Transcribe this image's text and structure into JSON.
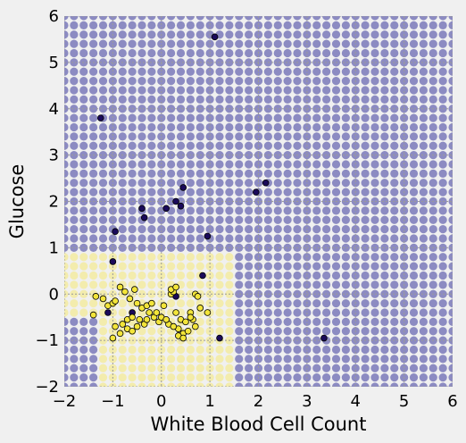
{
  "chart_data": {
    "type": "scatter",
    "title": "",
    "xlabel": "White Blood Cell Count",
    "ylabel": "Glucose",
    "xlim": [
      -2,
      6
    ],
    "ylim": [
      -2,
      6
    ],
    "xticks": [
      "−2",
      "−1",
      "0",
      "1",
      "2",
      "3",
      "4",
      "5",
      "6"
    ],
    "yticks": [
      "−2",
      "−1",
      "0",
      "1",
      "2",
      "3",
      "4",
      "5",
      "6"
    ],
    "grid": true,
    "background_grid": {
      "description": "decision-region mesh of translucent dots",
      "x_values": [
        -2.0,
        -1.8,
        -1.6,
        -1.4,
        -1.2,
        -1.0,
        -0.8,
        -0.6,
        -0.4,
        -0.2,
        0.0,
        0.2,
        0.4,
        0.6,
        0.8,
        1.0,
        1.2,
        1.4,
        1.6,
        1.8,
        2.0,
        2.2,
        2.4,
        2.6,
        2.8,
        3.0,
        3.2,
        3.4,
        3.6,
        3.8,
        4.0,
        4.2,
        4.4,
        4.6,
        4.8,
        5.0,
        5.2,
        5.4,
        5.6,
        5.8,
        6.0
      ],
      "y_values": [
        -2.0,
        -1.8,
        -1.6,
        -1.4,
        -1.2,
        -1.0,
        -0.8,
        -0.6,
        -0.4,
        -0.2,
        0.0,
        0.2,
        0.4,
        0.6,
        0.8,
        1.0,
        1.2,
        1.4,
        1.6,
        1.8,
        2.0,
        2.2,
        2.4,
        2.6,
        2.8,
        3.0,
        3.2,
        3.4,
        3.6,
        3.8,
        4.0,
        4.2,
        4.4,
        4.6,
        4.8,
        5.0,
        5.2,
        5.4,
        5.6,
        5.8,
        6.0
      ],
      "class1_region": [
        {
          "x": [
            -2.0,
            1.4
          ],
          "y": [
            -0.4,
            0.8
          ]
        },
        {
          "x": [
            -1.2,
            1.4
          ],
          "y": [
            -2.0,
            -0.4
          ]
        }
      ],
      "class0_color": "#4a47a3",
      "class1_color": "#f7e65c"
    },
    "series": [
      {
        "color": "#1a0a5a",
        "x": [
          1.1,
          -1.25,
          -0.95,
          -0.4,
          -0.35,
          0.1,
          0.3,
          0.45,
          0.4,
          0.95,
          1.95,
          2.15,
          -1.0,
          0.85,
          -1.1,
          1.2,
          3.35,
          -0.6,
          0.3
        ],
        "y": [
          5.55,
          3.8,
          1.35,
          1.85,
          1.65,
          1.85,
          2.0,
          2.3,
          1.9,
          1.25,
          2.2,
          2.4,
          0.7,
          0.4,
          -0.4,
          -0.95,
          -0.95,
          -0.4,
          -0.05
        ]
      },
      {
        "color": "#f3e53a",
        "x": [
          -1.35,
          -1.2,
          -1.1,
          -1.0,
          -0.95,
          -0.85,
          -0.8,
          -0.75,
          -0.7,
          -0.65,
          -0.6,
          -0.55,
          -0.5,
          -0.45,
          -0.4,
          -0.35,
          -0.3,
          -0.25,
          -0.15,
          -0.1,
          -0.05,
          0.0,
          0.05,
          0.15,
          0.2,
          0.25,
          0.3,
          0.35,
          0.4,
          0.45,
          0.5,
          0.6,
          0.65,
          0.7,
          0.75,
          0.8,
          -1.4,
          -1.0,
          -0.85,
          -0.7,
          -0.5,
          -0.3,
          -0.2,
          0.1,
          0.25,
          0.35,
          0.45,
          0.55,
          0.7,
          -0.95,
          -0.6,
          0.2,
          0.3,
          0.6,
          0.95
        ],
        "y": [
          -0.05,
          -0.1,
          -0.25,
          -0.2,
          -0.15,
          0.15,
          -0.65,
          0.05,
          -0.55,
          -0.1,
          -0.5,
          0.1,
          -0.2,
          -0.55,
          -0.3,
          -0.65,
          -0.25,
          -0.4,
          -0.5,
          -0.4,
          -0.6,
          -0.5,
          -0.25,
          -0.65,
          0.0,
          0.05,
          -0.4,
          -0.75,
          -0.55,
          -0.85,
          -0.6,
          -0.4,
          -0.55,
          0.0,
          -0.05,
          -0.3,
          -0.45,
          -0.95,
          -0.85,
          -0.75,
          -0.7,
          -0.55,
          -0.2,
          -0.55,
          -0.7,
          -0.9,
          -0.95,
          -0.8,
          -0.7,
          -0.7,
          -0.8,
          0.1,
          0.15,
          -0.5,
          -0.4
        ]
      }
    ]
  }
}
